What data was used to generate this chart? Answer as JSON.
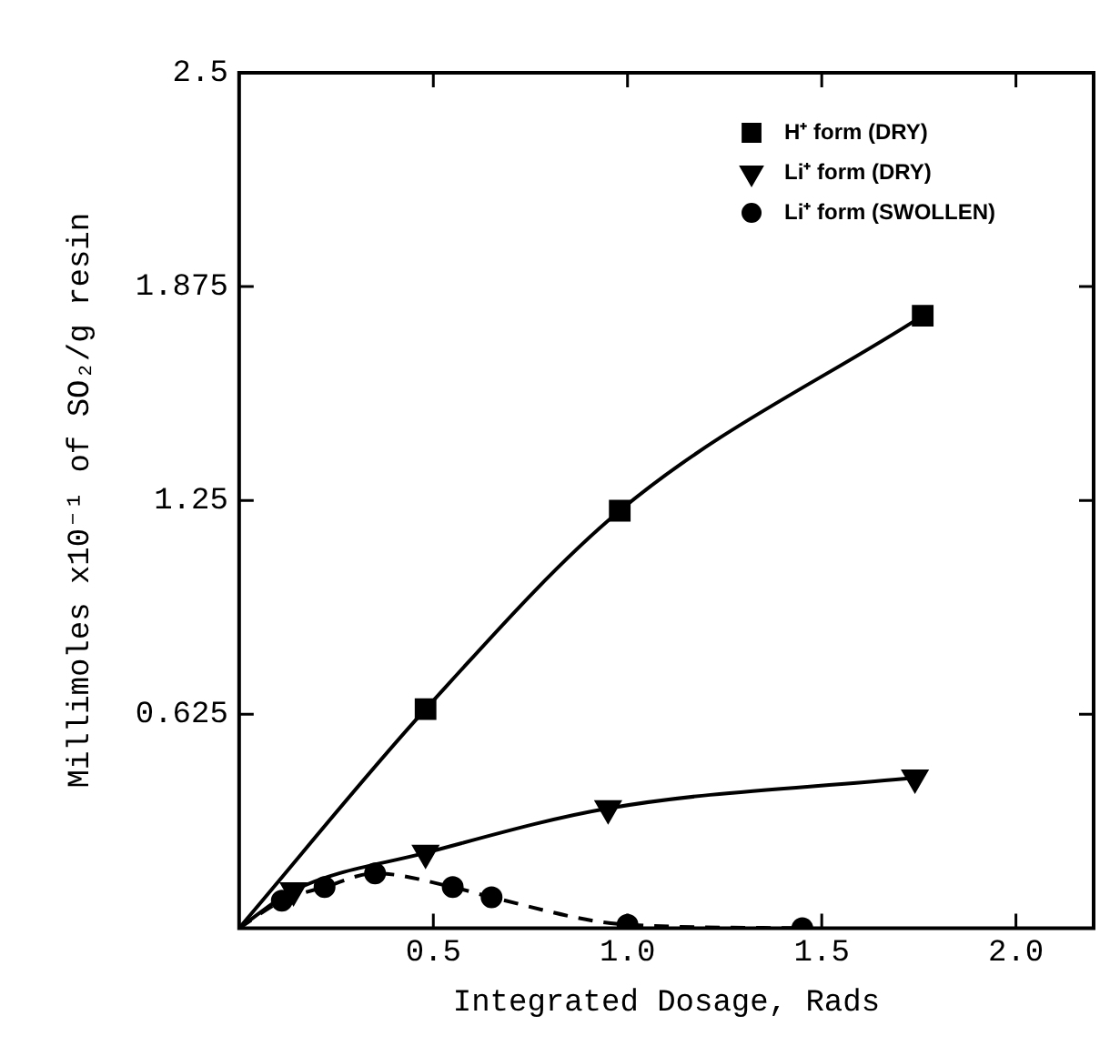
{
  "chart_data": {
    "type": "line",
    "xlabel": "Integrated Dosage, Rads",
    "ylabel": "Millimoles x10⁻¹ of SO₂/g resin",
    "xlim": [
      0,
      2.2
    ],
    "ylim": [
      0,
      2.5
    ],
    "xticks": [
      0.5,
      {
        "value": 1,
        "label": "1.0"
      },
      1.5,
      {
        "value": 2,
        "label": "2.0"
      }
    ],
    "yticks": [
      0.625,
      1.25,
      1.875,
      2.5
    ],
    "grid": false,
    "legend": "top right",
    "series": [
      {
        "name": "H⁺ form (DRY)",
        "color": "#000000",
        "marker": "square",
        "line_style": "solid",
        "x": [
          0,
          0.48,
          0.98,
          1.76
        ],
        "values": [
          0,
          0.64,
          1.22,
          1.79
        ]
      },
      {
        "name": "Li⁺ form (DRY)",
        "color": "#000000",
        "marker": "triangle",
        "line_style": "solid",
        "x": [
          0,
          0.14,
          0.48,
          0.95,
          1.74
        ],
        "values": [
          0,
          0.11,
          0.22,
          0.35,
          0.44
        ]
      },
      {
        "name": "Li⁺ form (SWOLLEN)",
        "color": "#000000",
        "marker": "circle",
        "line_style": "dashed",
        "x": [
          0,
          0.11,
          0.22,
          0.35,
          0.55,
          0.65,
          1.0,
          1.45
        ],
        "values": [
          0,
          0.08,
          0.12,
          0.16,
          0.12,
          0.09,
          0.01,
          0
        ]
      }
    ]
  }
}
